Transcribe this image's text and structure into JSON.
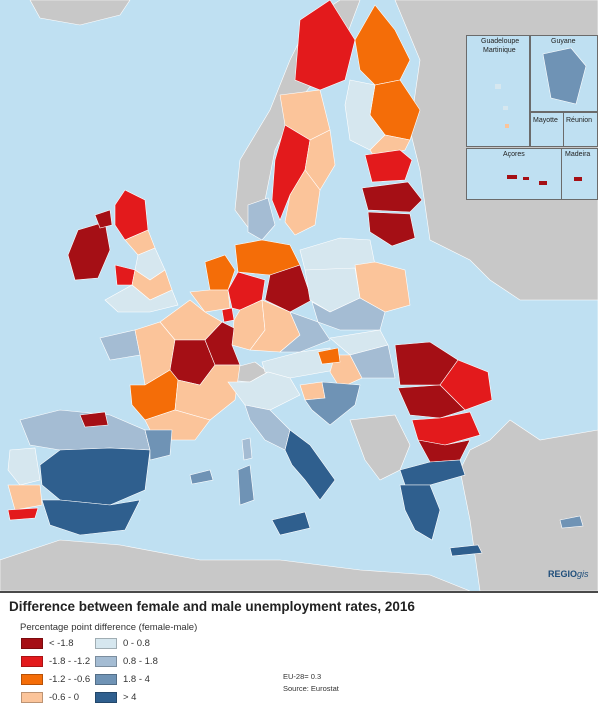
{
  "title": "Difference between female and male unemployment rates, 2016",
  "legend": {
    "title": "Percentage point difference (female-male)",
    "items": [
      {
        "label": "< -1.8",
        "color": "#a50f15"
      },
      {
        "label": "-1.8 - -1.2",
        "color": "#e31a1c"
      },
      {
        "label": "-1.2 - -0.6",
        "color": "#f46d08"
      },
      {
        "label": "-0.6 - 0",
        "color": "#fbc49a"
      },
      {
        "label": "0 - 0.8",
        "color": "#d6e7ef"
      },
      {
        "label": "0.8 - 1.8",
        "color": "#a4bcd3"
      },
      {
        "label": "1.8 - 4",
        "color": "#6f93b5"
      },
      {
        "label": "> 4",
        "color": "#2f5f8e"
      }
    ]
  },
  "eu_note": "EU-28= 0.3",
  "source": "Source: Eurostat",
  "brand": {
    "bold": "REGIO",
    "italic": "gis"
  },
  "insets": {
    "guadeloupe": "Guadeloupe",
    "martinique": "Martinique",
    "guyane": "Guyane",
    "mayotte": "Mayotte",
    "reunion": "Réunion",
    "acores": "Açores",
    "madeira": "Madeira"
  },
  "colors": {
    "sea": "#bfe0f2",
    "non_eu_land": "#c8c8c8",
    "border": "#ffffff"
  }
}
